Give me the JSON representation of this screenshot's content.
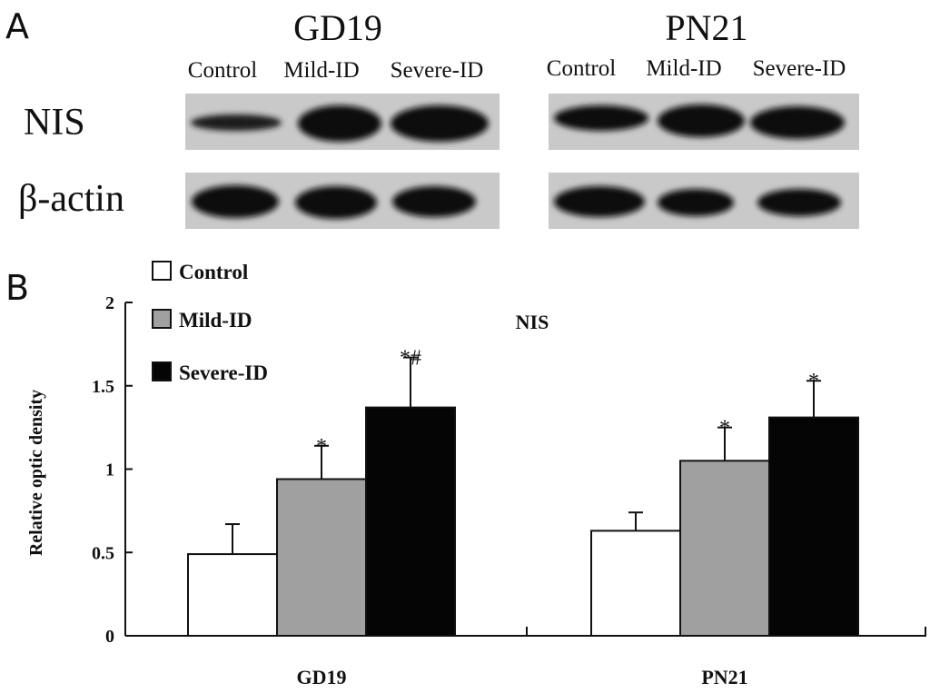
{
  "panel_a": {
    "letter": "A",
    "blots": [
      {
        "title": "GD19",
        "lanes": [
          "Control",
          "Mild-ID",
          "Severe-ID"
        ]
      },
      {
        "title": "PN21",
        "lanes": [
          "Control",
          "Mild-ID",
          "Severe-ID"
        ]
      }
    ],
    "rows": [
      "NIS",
      "β-actin"
    ]
  },
  "panel_b": {
    "letter": "B"
  },
  "chart_data": {
    "type": "bar",
    "title": "NIS",
    "ylabel": "Relative optic density",
    "xlabel": "",
    "categories": [
      "GD19",
      "PN21"
    ],
    "ylim": [
      0,
      2
    ],
    "yticks": [
      0,
      0.5,
      1,
      1.5,
      2
    ],
    "ytick_labels": [
      "0",
      "0.5",
      "1",
      "1.5",
      "2"
    ],
    "legend_position": "top-left",
    "series": [
      {
        "name": "Control",
        "color": "#ffffff",
        "values": [
          0.49,
          0.63
        ],
        "errors": [
          0.18,
          0.11
        ],
        "sig": [
          "",
          ""
        ]
      },
      {
        "name": "Mild-ID",
        "color": "#a0a0a0",
        "values": [
          0.94,
          1.05
        ],
        "errors": [
          0.2,
          0.2
        ],
        "sig": [
          "*",
          "*"
        ]
      },
      {
        "name": "Severe-ID",
        "color": "#050505",
        "values": [
          1.37,
          1.31
        ],
        "errors": [
          0.3,
          0.22
        ],
        "sig": [
          "*#",
          "*"
        ]
      }
    ]
  }
}
